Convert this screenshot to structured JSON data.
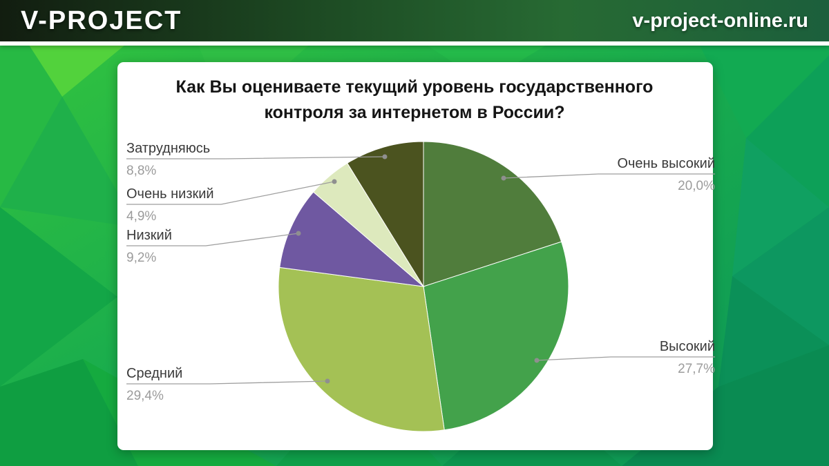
{
  "header": {
    "logo": "V-PROJECT",
    "site_url": "v-project-online.ru"
  },
  "chart_data": {
    "type": "pie",
    "title": "Как Вы оцениваете текущий уровень государственного контроля за интернетом в России?",
    "start_angle_deg": 0,
    "direction": "clockwise",
    "legend_position": "callouts",
    "value_format": "percent-comma-decimal",
    "slices": [
      {
        "label": "Очень высокий",
        "value": 20.0,
        "display": "20,0%",
        "color": "#507d3c"
      },
      {
        "label": "Высокий",
        "value": 27.7,
        "display": "27,7%",
        "color": "#43a24b"
      },
      {
        "label": "Средний",
        "value": 29.4,
        "display": "29,4%",
        "color": "#a4c155"
      },
      {
        "label": "Низкий",
        "value": 9.2,
        "display": "9,2%",
        "color": "#6f58a1"
      },
      {
        "label": "Очень низкий",
        "value": 4.9,
        "display": "4,9%",
        "color": "#dde9bd"
      },
      {
        "label": "Затрудняюсь",
        "value": 8.8,
        "display": "8,8%",
        "color": "#4b531f"
      }
    ]
  }
}
